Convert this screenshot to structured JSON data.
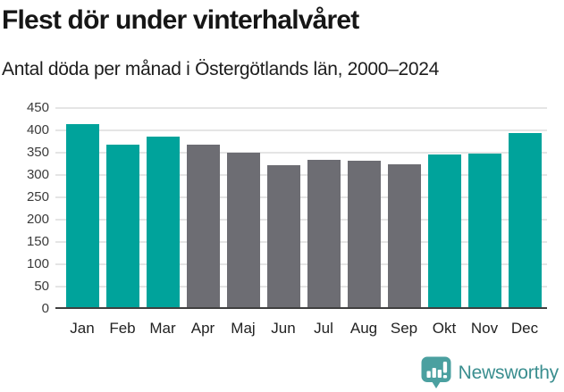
{
  "header": {
    "title": "Flest dör under vinterhalvåret",
    "subtitle": "Antal döda per månad i Östergötlands län, 2000–2024"
  },
  "chart_data": {
    "type": "bar",
    "title": "Flest dör under vinterhalvåret",
    "subtitle": "Antal döda per månad i Östergötlands län, 2000–2024",
    "categories": [
      "Jan",
      "Feb",
      "Mar",
      "Apr",
      "Maj",
      "Jun",
      "Jul",
      "Aug",
      "Sep",
      "Okt",
      "Nov",
      "Dec"
    ],
    "values": [
      415,
      368,
      387,
      369,
      351,
      322,
      335,
      333,
      324,
      346,
      348,
      395
    ],
    "highlighted_categories": [
      "Jan",
      "Feb",
      "Mar",
      "Okt",
      "Nov",
      "Dec"
    ],
    "highlight_color": "#00a39b",
    "base_color": "#6d6d73",
    "xlabel": "",
    "ylabel": "",
    "ylim": [
      0,
      450
    ],
    "ytick_step": 50,
    "grid": true,
    "legend_position": "none",
    "axis_color": "#3f3f3f",
    "gridline_color": "#e5e5e5"
  },
  "footer": {
    "brand": "Newsworthy",
    "brand_color": "#3a8e8f",
    "icon_color": "#4ba0a0"
  }
}
